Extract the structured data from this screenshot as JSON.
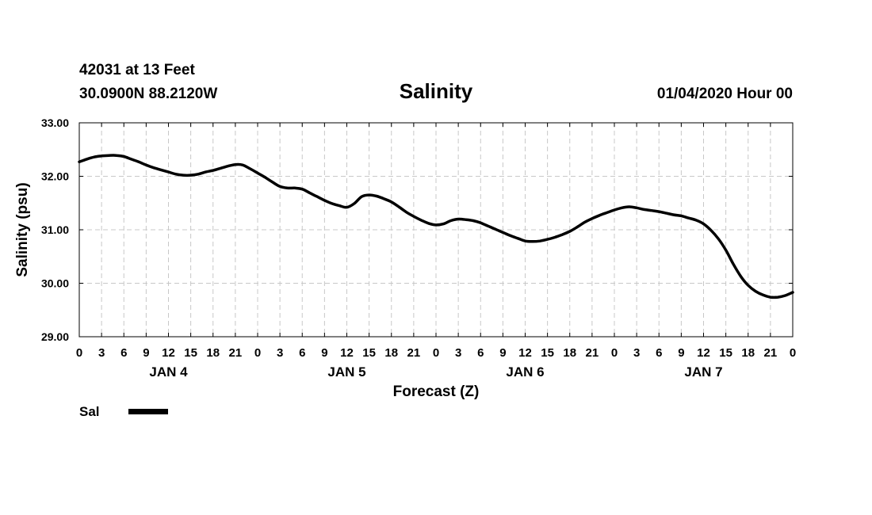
{
  "header": {
    "station": "42031 at 13 Feet",
    "location": "30.0900N 88.2120W",
    "title": "Salinity",
    "run": "01/04/2020 Hour 00"
  },
  "legend": {
    "label": "Sal"
  },
  "colors": {
    "line": "#000000",
    "grid": "#c8c8c8",
    "axis": "#000000"
  },
  "chart_data": {
    "type": "line",
    "title": "Salinity",
    "xlabel": "Forecast (Z)",
    "ylabel": "Salinity (psu)",
    "ylim": [
      29.0,
      33.0
    ],
    "yticks": [
      "29.00",
      "30.00",
      "31.00",
      "32.00",
      "33.00"
    ],
    "xlim": [
      0,
      96
    ],
    "xtick_labels": [
      "0",
      "3",
      "6",
      "9",
      "12",
      "15",
      "18",
      "21",
      "0",
      "3",
      "6",
      "9",
      "12",
      "15",
      "18",
      "21",
      "0",
      "3",
      "6",
      "9",
      "12",
      "15",
      "18",
      "21",
      "0",
      "3",
      "6",
      "9",
      "12",
      "15",
      "18",
      "21",
      "0"
    ],
    "day_labels": [
      {
        "label": "JAN 4",
        "hour": 12
      },
      {
        "label": "JAN 5",
        "hour": 36
      },
      {
        "label": "JAN 6",
        "hour": 60
      },
      {
        "label": "JAN 7",
        "hour": 84
      }
    ],
    "grid": true,
    "series": [
      {
        "name": "Sal",
        "x": [
          0,
          1,
          2,
          3,
          4,
          5,
          6,
          7,
          8,
          9,
          10,
          11,
          12,
          13,
          14,
          15,
          16,
          17,
          18,
          19,
          20,
          21,
          22,
          23,
          24,
          25,
          26,
          27,
          28,
          29,
          30,
          31,
          32,
          33,
          34,
          35,
          36,
          37,
          38,
          39,
          40,
          41,
          42,
          43,
          44,
          45,
          46,
          47,
          48,
          49,
          50,
          51,
          52,
          53,
          54,
          55,
          56,
          57,
          58,
          59,
          60,
          61,
          62,
          63,
          64,
          65,
          66,
          67,
          68,
          69,
          70,
          71,
          72,
          73,
          74,
          75,
          76,
          77,
          78,
          79,
          80,
          81,
          82,
          83,
          84,
          85,
          86,
          87,
          88,
          89,
          90,
          91,
          92,
          93,
          94,
          95,
          96
        ],
        "y": [
          32.27,
          32.32,
          32.36,
          32.38,
          32.39,
          32.39,
          32.37,
          32.32,
          32.27,
          32.21,
          32.16,
          32.12,
          32.08,
          32.04,
          32.02,
          32.02,
          32.04,
          32.08,
          32.11,
          32.15,
          32.19,
          32.22,
          32.21,
          32.14,
          32.06,
          31.98,
          31.89,
          31.81,
          31.78,
          31.78,
          31.76,
          31.69,
          31.62,
          31.55,
          31.49,
          31.45,
          31.42,
          31.49,
          31.62,
          31.65,
          31.63,
          31.58,
          31.52,
          31.43,
          31.33,
          31.25,
          31.18,
          31.12,
          31.09,
          31.11,
          31.17,
          31.2,
          31.19,
          31.17,
          31.13,
          31.07,
          31.01,
          30.95,
          30.89,
          30.84,
          30.79,
          30.78,
          30.79,
          30.82,
          30.86,
          30.91,
          30.97,
          31.05,
          31.14,
          31.21,
          31.27,
          31.32,
          31.37,
          31.41,
          31.43,
          31.41,
          31.38,
          31.36,
          31.34,
          31.31,
          31.28,
          31.26,
          31.22,
          31.18,
          31.11,
          30.99,
          30.83,
          30.62,
          30.36,
          30.13,
          29.96,
          29.85,
          29.78,
          29.74,
          29.74,
          29.77,
          29.83
        ]
      }
    ]
  }
}
